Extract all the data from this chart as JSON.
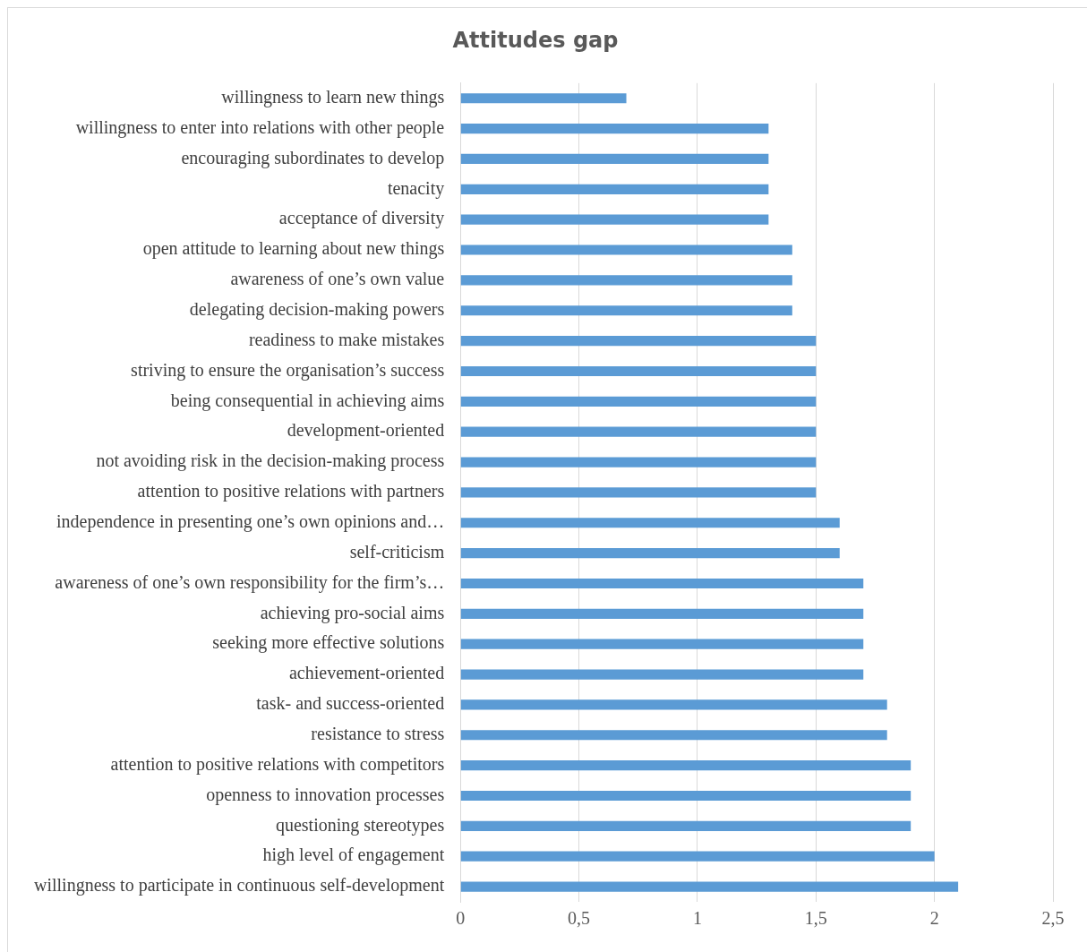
{
  "chart_data": {
    "type": "bar",
    "orientation": "horizontal",
    "title": "Attitudes gap",
    "categories": [
      "willingness to learn new things",
      "willingness to enter into relations with other people",
      "encouraging subordinates to develop",
      "tenacity",
      "acceptance of diversity",
      "open attitude to learning about new things",
      "awareness of one’s own value",
      "delegating decision-making powers",
      "readiness to make mistakes",
      "striving to ensure the organisation’s success",
      "being consequential in achieving aims",
      "development-oriented",
      "not avoiding risk in the decision-making process",
      "attention to positive relations with partners",
      "independence in presenting one’s own opinions and…",
      "self-criticism",
      "awareness of one’s own responsibility for the firm’s…",
      "achieving pro-social aims",
      "seeking more effective solutions",
      "achievement-oriented",
      "task- and success-oriented",
      "resistance to stress",
      "attention to positive relations with competitors",
      "openness to innovation processes",
      "questioning stereotypes",
      "high level of engagement",
      "willingness to participate in continuous self-development"
    ],
    "values": [
      0.7,
      1.3,
      1.3,
      1.3,
      1.3,
      1.4,
      1.4,
      1.4,
      1.5,
      1.5,
      1.5,
      1.5,
      1.5,
      1.5,
      1.6,
      1.6,
      1.7,
      1.7,
      1.7,
      1.7,
      1.8,
      1.8,
      1.9,
      1.9,
      1.9,
      2,
      2.1
    ],
    "color": "#5b9bd5",
    "xlim": [
      0,
      2.5
    ],
    "xticks": [
      0,
      {
        "value": 0.5,
        "label": "0,5"
      },
      1,
      {
        "value": 1.5,
        "label": "1,5"
      },
      2,
      {
        "value": 2.5,
        "label": "2,5"
      }
    ],
    "grid": "x",
    "legend": false
  }
}
